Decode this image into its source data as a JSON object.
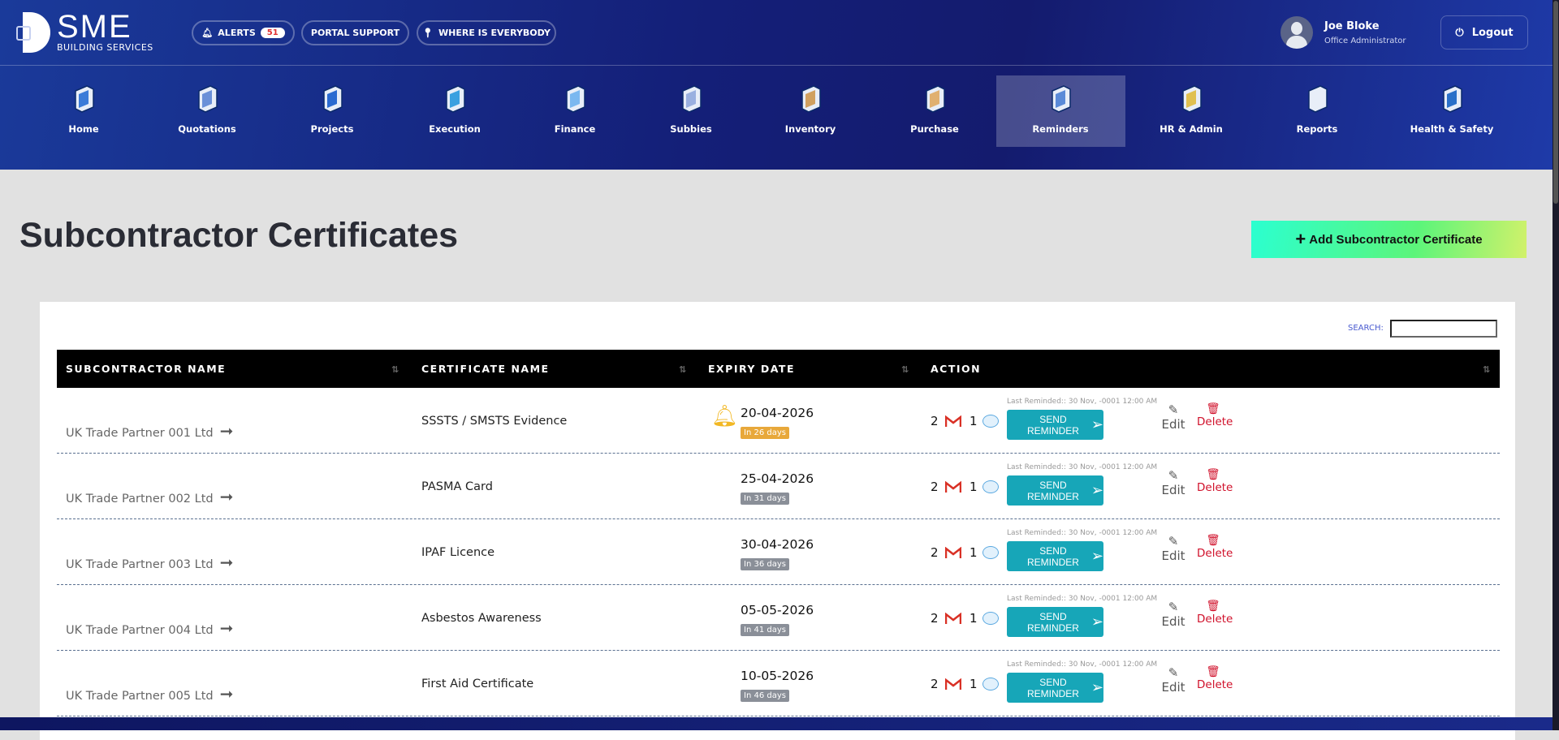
{
  "header": {
    "logo_text": "SME",
    "logo_sub": "BUILDING SERVICES",
    "alerts_label": "ALERTS",
    "alerts_count": "51",
    "portal_support": "PORTAL SUPPORT",
    "where_is_everybody": "WHERE IS EVERYBODY",
    "user_name": "Joe Bloke",
    "user_role": "Office Administrator",
    "logout": "Logout"
  },
  "nav": [
    {
      "label": "Home",
      "color": "#3b7bd8"
    },
    {
      "label": "Quotations",
      "color": "#6a90d8"
    },
    {
      "label": "Projects",
      "color": "#2a6ad0"
    },
    {
      "label": "Execution",
      "color": "#3aa0e0"
    },
    {
      "label": "Finance",
      "color": "#7ab8f0"
    },
    {
      "label": "Subbies",
      "color": "#9ab0e0"
    },
    {
      "label": "Inventory",
      "color": "#d0a060"
    },
    {
      "label": "Purchase",
      "color": "#e0b070"
    },
    {
      "label": "Reminders",
      "color": "#5a8ad8",
      "active": true
    },
    {
      "label": "HR & Admin",
      "color": "#e0c050"
    },
    {
      "label": "Reports",
      "color": "#e8eef8"
    },
    {
      "label": "Health & Safety",
      "color": "#2a70c8"
    }
  ],
  "page": {
    "title": "Subcontractor Certificates",
    "add_button": "Add Subcontractor Certificate",
    "search_label": "SEARCH:",
    "search_value": ""
  },
  "table": {
    "columns": [
      "SUBCONTRACTOR NAME",
      "CERTIFICATE NAME",
      "EXPIRY DATE",
      "ACTION"
    ],
    "rows": [
      {
        "subcontractor": "UK Trade Partner 001 Ltd",
        "certificate": "SSSTS / SMSTS Evidence",
        "expiry": "20-04-2026",
        "days": "In 26 days",
        "days_color": "#e8a83a",
        "bell": true,
        "email_count": "2",
        "sms_count": "1",
        "last_reminded": "Last Reminded:: 30 Nov, -0001 12:00 AM",
        "send": "SEND REMINDER",
        "edit": "Edit",
        "delete": "Delete"
      },
      {
        "subcontractor": "UK Trade Partner 002 Ltd",
        "certificate": "PASMA Card",
        "expiry": "25-04-2026",
        "days": "In 31 days",
        "days_color": "#8a8f98",
        "bell": false,
        "email_count": "2",
        "sms_count": "1",
        "last_reminded": "Last Reminded:: 30 Nov, -0001 12:00 AM",
        "send": "SEND REMINDER",
        "edit": "Edit",
        "delete": "Delete"
      },
      {
        "subcontractor": "UK Trade Partner 003 Ltd",
        "certificate": "IPAF Licence",
        "expiry": "30-04-2026",
        "days": "In 36 days",
        "days_color": "#8a8f98",
        "bell": false,
        "email_count": "2",
        "sms_count": "1",
        "last_reminded": "Last Reminded:: 30 Nov, -0001 12:00 AM",
        "send": "SEND REMINDER",
        "edit": "Edit",
        "delete": "Delete"
      },
      {
        "subcontractor": "UK Trade Partner 004 Ltd",
        "certificate": "Asbestos Awareness",
        "expiry": "05-05-2026",
        "days": "In 41 days",
        "days_color": "#8a8f98",
        "bell": false,
        "email_count": "2",
        "sms_count": "1",
        "last_reminded": "Last Reminded:: 30 Nov, -0001 12:00 AM",
        "send": "SEND REMINDER",
        "edit": "Edit",
        "delete": "Delete"
      },
      {
        "subcontractor": "UK Trade Partner 005 Ltd",
        "certificate": "First Aid Certificate",
        "expiry": "10-05-2026",
        "days": "In 46 days",
        "days_color": "#8a8f98",
        "bell": false,
        "email_count": "2",
        "sms_count": "1",
        "last_reminded": "Last Reminded:: 30 Nov, -0001 12:00 AM",
        "send": "SEND REMINDER",
        "edit": "Edit",
        "delete": "Delete"
      }
    ]
  }
}
